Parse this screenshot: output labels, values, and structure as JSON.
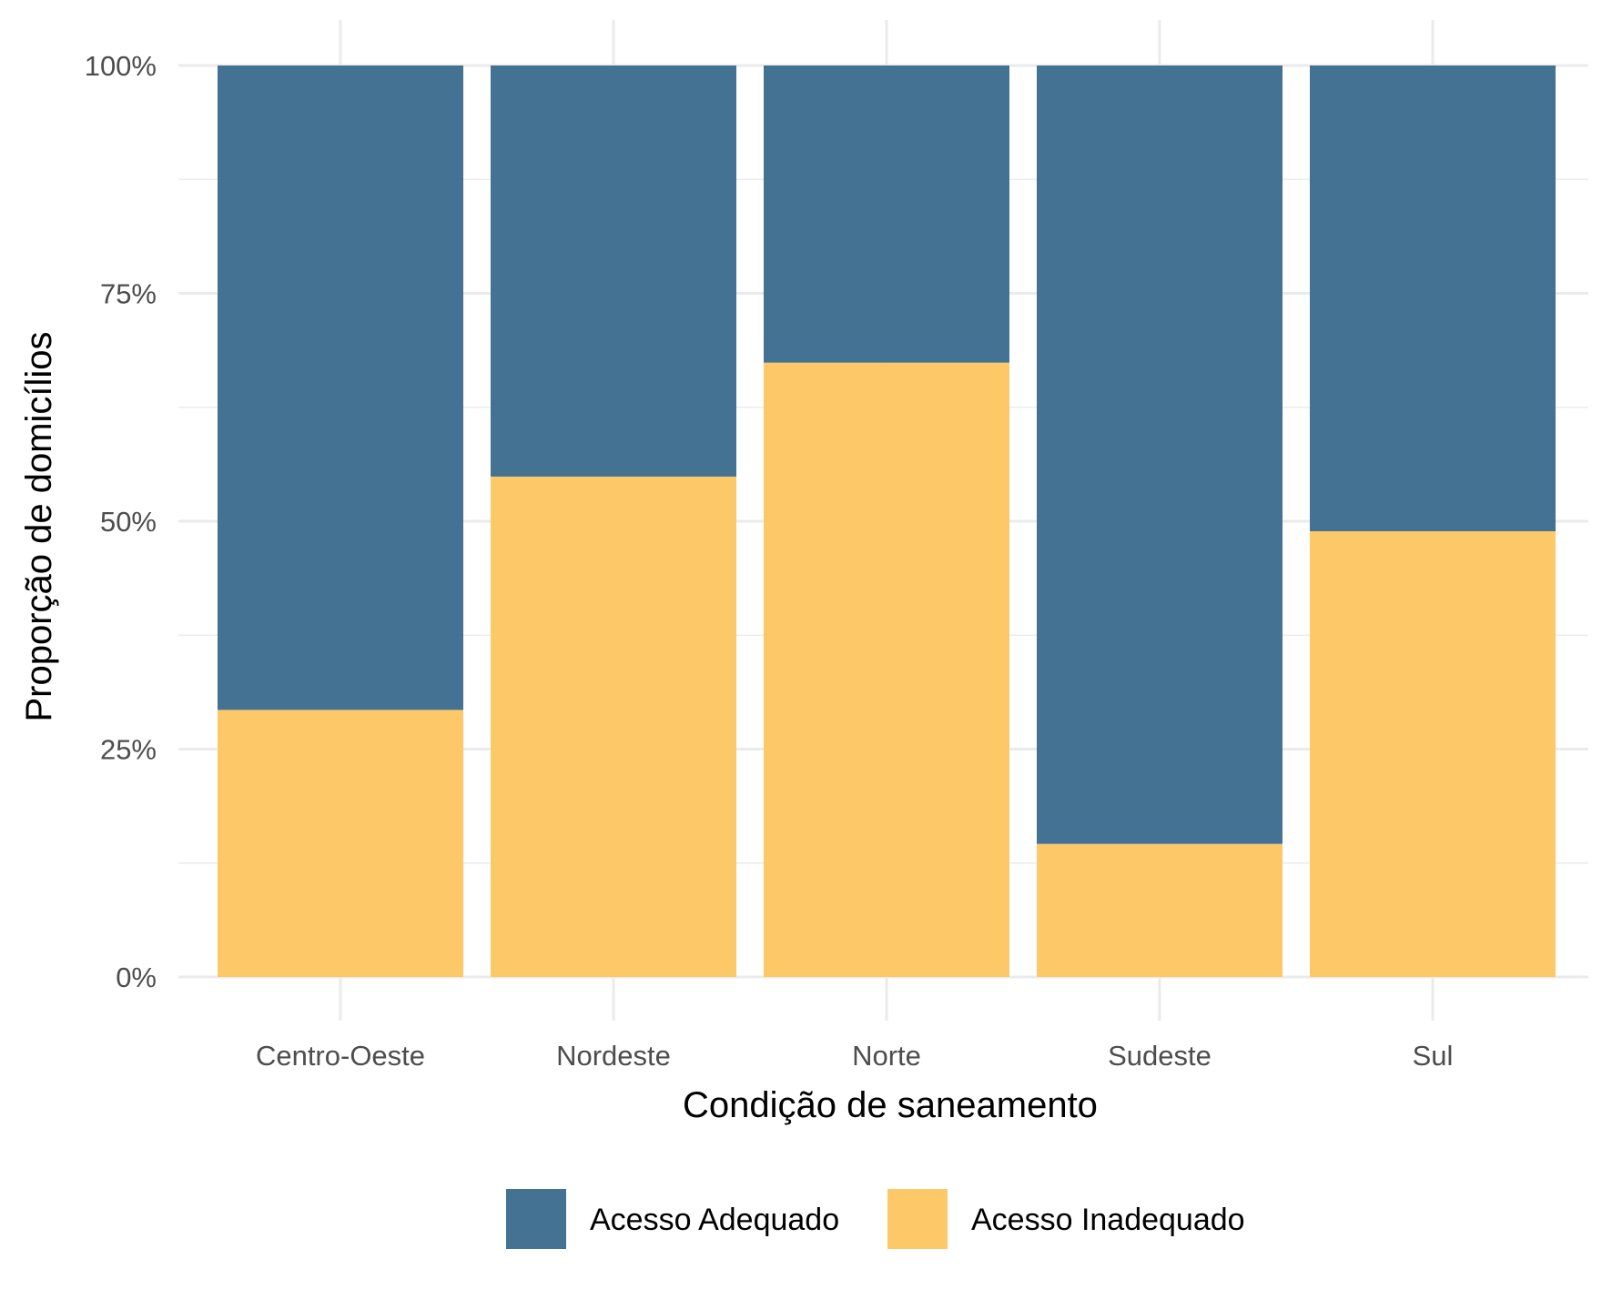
{
  "chart_data": {
    "type": "bar",
    "stacked": true,
    "percent": true,
    "categories": [
      "Centro-Oeste",
      "Nordeste",
      "Norte",
      "Sudeste",
      "Sul"
    ],
    "series": [
      {
        "name": "Acesso Inadequado",
        "values": [
          29.3,
          54.9,
          67.4,
          14.6,
          48.9
        ],
        "color": "#FDC968"
      },
      {
        "name": "Acesso Adequado",
        "values": [
          70.7,
          45.1,
          32.6,
          85.4,
          51.1
        ],
        "color": "#447293"
      }
    ],
    "xlabel": "Condição de saneamento",
    "ylabel": "Proporção de domicílios",
    "ylim": [
      0,
      100
    ],
    "yticks": [
      "0%",
      "25%",
      "50%",
      "75%",
      "100%"
    ],
    "ytick_values": [
      0,
      25,
      50,
      75,
      100
    ],
    "grid": true,
    "legend": {
      "position": "bottom",
      "items": [
        {
          "label": "Acesso Adequado",
          "color": "#447293"
        },
        {
          "label": "Acesso Inadequado",
          "color": "#FDC968"
        }
      ]
    }
  }
}
